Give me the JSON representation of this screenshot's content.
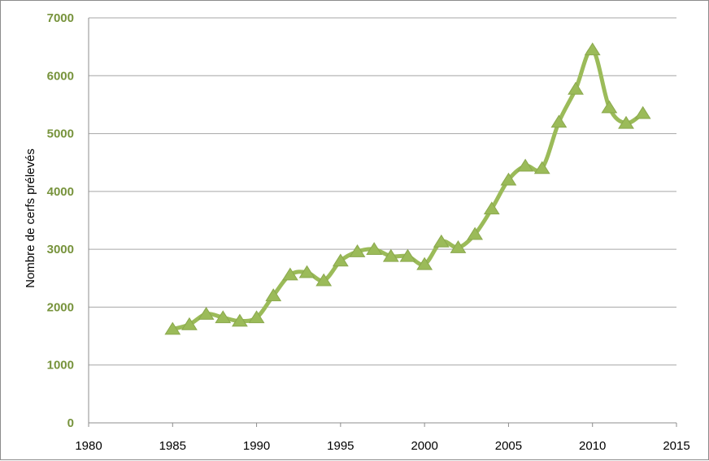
{
  "chart_data": {
    "type": "line",
    "title": "",
    "xlabel": "",
    "ylabel": "Nombre de cerfs prélevés",
    "xlim": [
      1980,
      2015
    ],
    "ylim": [
      0,
      7000
    ],
    "x_ticks": [
      1980,
      1985,
      1990,
      1995,
      2000,
      2005,
      2010,
      2015
    ],
    "y_ticks": [
      0,
      1000,
      2000,
      3000,
      4000,
      5000,
      6000,
      7000
    ],
    "grid": "horizontal",
    "legend": "none",
    "colors": {
      "line": "#9bbb59",
      "marker": "#9bbb59",
      "ytick_text": "#77933c",
      "grid": "#a6a6a6"
    },
    "series": [
      {
        "x": [
          1985,
          1986,
          1987,
          1988,
          1989,
          1990,
          1991,
          1992,
          1993,
          1994,
          1995,
          1996,
          1997,
          1998,
          1999,
          2000,
          2001,
          2002,
          2003,
          2004,
          2005,
          2006,
          2007,
          2008,
          2009,
          2010,
          2011,
          2012,
          2013
        ],
        "values": [
          1620,
          1700,
          1880,
          1820,
          1760,
          1820,
          2200,
          2560,
          2600,
          2460,
          2800,
          2960,
          3000,
          2880,
          2880,
          2740,
          3130,
          3030,
          3260,
          3700,
          4200,
          4440,
          4400,
          5200,
          5770,
          6450,
          5450,
          5180,
          5350
        ],
        "marker": "triangle"
      }
    ]
  }
}
